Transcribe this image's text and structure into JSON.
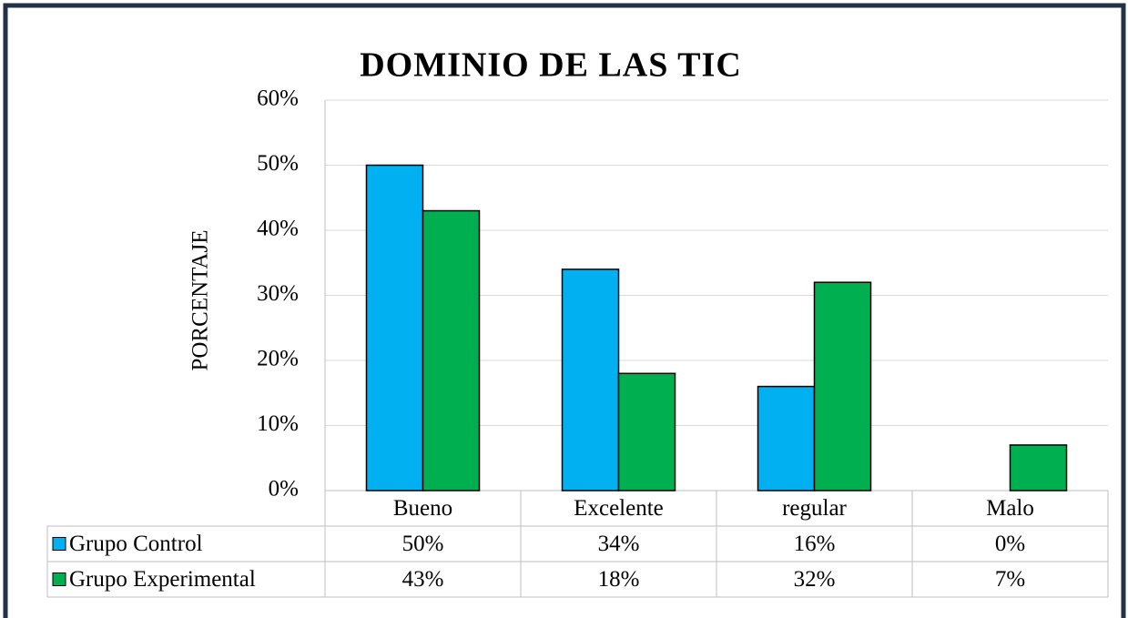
{
  "chart_data": {
    "type": "bar",
    "title": "DOMINIO DE LAS TIC",
    "y_label": "PORCENTAJE",
    "categories": [
      "Bueno",
      "Excelente",
      "regular",
      "Malo"
    ],
    "series": [
      {
        "name": "Grupo Control",
        "color": "#00b0f0",
        "values": [
          50,
          34,
          16,
          0
        ],
        "value_labels": [
          "50%",
          "34%",
          "16%",
          "0%"
        ]
      },
      {
        "name": "Grupo Experimental",
        "color": "#00b050",
        "values": [
          43,
          18,
          32,
          7
        ],
        "value_labels": [
          "43%",
          "18%",
          "32%",
          "7%"
        ]
      }
    ],
    "ylim": [
      0,
      60
    ],
    "yticks": [
      {
        "value": 0,
        "label": "0%"
      },
      {
        "value": 10,
        "label": "10%"
      },
      {
        "value": 20,
        "label": "20%"
      },
      {
        "value": 30,
        "label": "30%"
      },
      {
        "value": 40,
        "label": "40%"
      },
      {
        "value": 50,
        "label": "50%"
      },
      {
        "value": 60,
        "label": "60%"
      }
    ],
    "grid": true,
    "data_table": true
  }
}
